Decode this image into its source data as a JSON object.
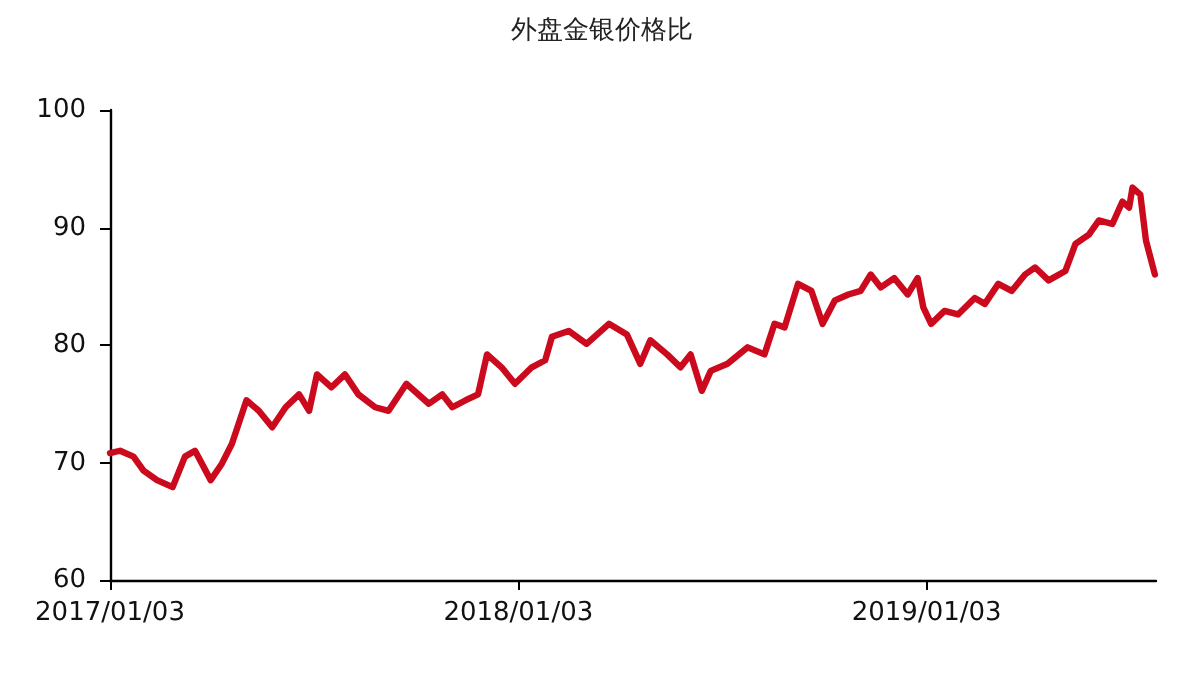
{
  "chart_data": {
    "type": "line",
    "title": "外盘金银价格比",
    "x": [
      "2017-01-03",
      "2017-01-12",
      "2017-01-24",
      "2017-02-02",
      "2017-02-14",
      "2017-02-28",
      "2017-03-11",
      "2017-03-20",
      "2017-04-03",
      "2017-04-13",
      "2017-04-22",
      "2017-05-05",
      "2017-05-16",
      "2017-05-28",
      "2017-06-09",
      "2017-06-21",
      "2017-06-30",
      "2017-07-07",
      "2017-07-20",
      "2017-08-01",
      "2017-08-13",
      "2017-08-28",
      "2017-09-09",
      "2017-09-25",
      "2017-10-15",
      "2017-10-27",
      "2017-11-05",
      "2017-11-17",
      "2017-11-28",
      "2017-12-06",
      "2017-12-19",
      "2017-12-31",
      "2018-01-15",
      "2018-01-27",
      "2018-02-02",
      "2018-02-17",
      "2018-03-05",
      "2018-03-25",
      "2018-04-10",
      "2018-04-22",
      "2018-05-01",
      "2018-05-16",
      "2018-05-28",
      "2018-06-06",
      "2018-06-16",
      "2018-06-24",
      "2018-07-09",
      "2018-07-27",
      "2018-08-11",
      "2018-08-20",
      "2018-08-29",
      "2018-09-10",
      "2018-09-22",
      "2018-10-02",
      "2018-10-13",
      "2018-10-25",
      "2018-11-05",
      "2018-11-14",
      "2018-11-23",
      "2018-12-05",
      "2018-12-17",
      "2018-12-26",
      "2018-12-31",
      "2019-01-07",
      "2019-01-19",
      "2019-01-31",
      "2019-02-15",
      "2019-02-24",
      "2019-03-08",
      "2019-03-20",
      "2019-04-01",
      "2019-04-10",
      "2019-04-22",
      "2019-05-07",
      "2019-05-16",
      "2019-05-28",
      "2019-06-06",
      "2019-06-18",
      "2019-06-27",
      "2019-07-03",
      "2019-07-06",
      "2019-07-13",
      "2019-07-18",
      "2019-07-26"
    ],
    "series": [
      {
        "color": "#cc0a1e",
        "values": [
          70.8,
          71.0,
          70.5,
          69.3,
          68.5,
          67.9,
          70.5,
          71.0,
          68.5,
          69.9,
          71.6,
          75.3,
          74.4,
          73.0,
          74.7,
          75.8,
          74.4,
          77.5,
          76.4,
          77.5,
          75.8,
          74.7,
          74.4,
          76.7,
          75.0,
          75.8,
          74.7,
          75.3,
          75.8,
          79.2,
          78.1,
          76.7,
          78.1,
          78.7,
          80.7,
          81.2,
          80.1,
          81.8,
          80.9,
          78.4,
          80.4,
          79.2,
          78.1,
          79.2,
          76.1,
          77.8,
          78.4,
          79.8,
          79.2,
          81.8,
          81.5,
          85.2,
          84.6,
          81.8,
          83.8,
          84.3,
          84.6,
          86.0,
          84.9,
          85.7,
          84.3,
          85.7,
          83.2,
          81.8,
          82.9,
          82.6,
          84.0,
          83.5,
          85.2,
          84.6,
          86.0,
          86.6,
          85.5,
          86.3,
          88.6,
          89.4,
          90.6,
          90.3,
          92.2,
          91.7,
          93.4,
          92.8,
          88.9,
          86.0
        ]
      }
    ],
    "xlim": [
      "2017-01-03",
      "2019-07-27"
    ],
    "xticks": [
      {
        "value": "2017-01-03",
        "label": "2017/01/03"
      },
      {
        "value": "2018-01-03",
        "label": "2018/01/03"
      },
      {
        "value": "2019-01-03",
        "label": "2019/01/03"
      }
    ],
    "ylim": [
      60,
      100
    ],
    "yticks": [
      60,
      70,
      80,
      90,
      100
    ],
    "grid": false,
    "marker": "none",
    "line_style": "solid"
  }
}
